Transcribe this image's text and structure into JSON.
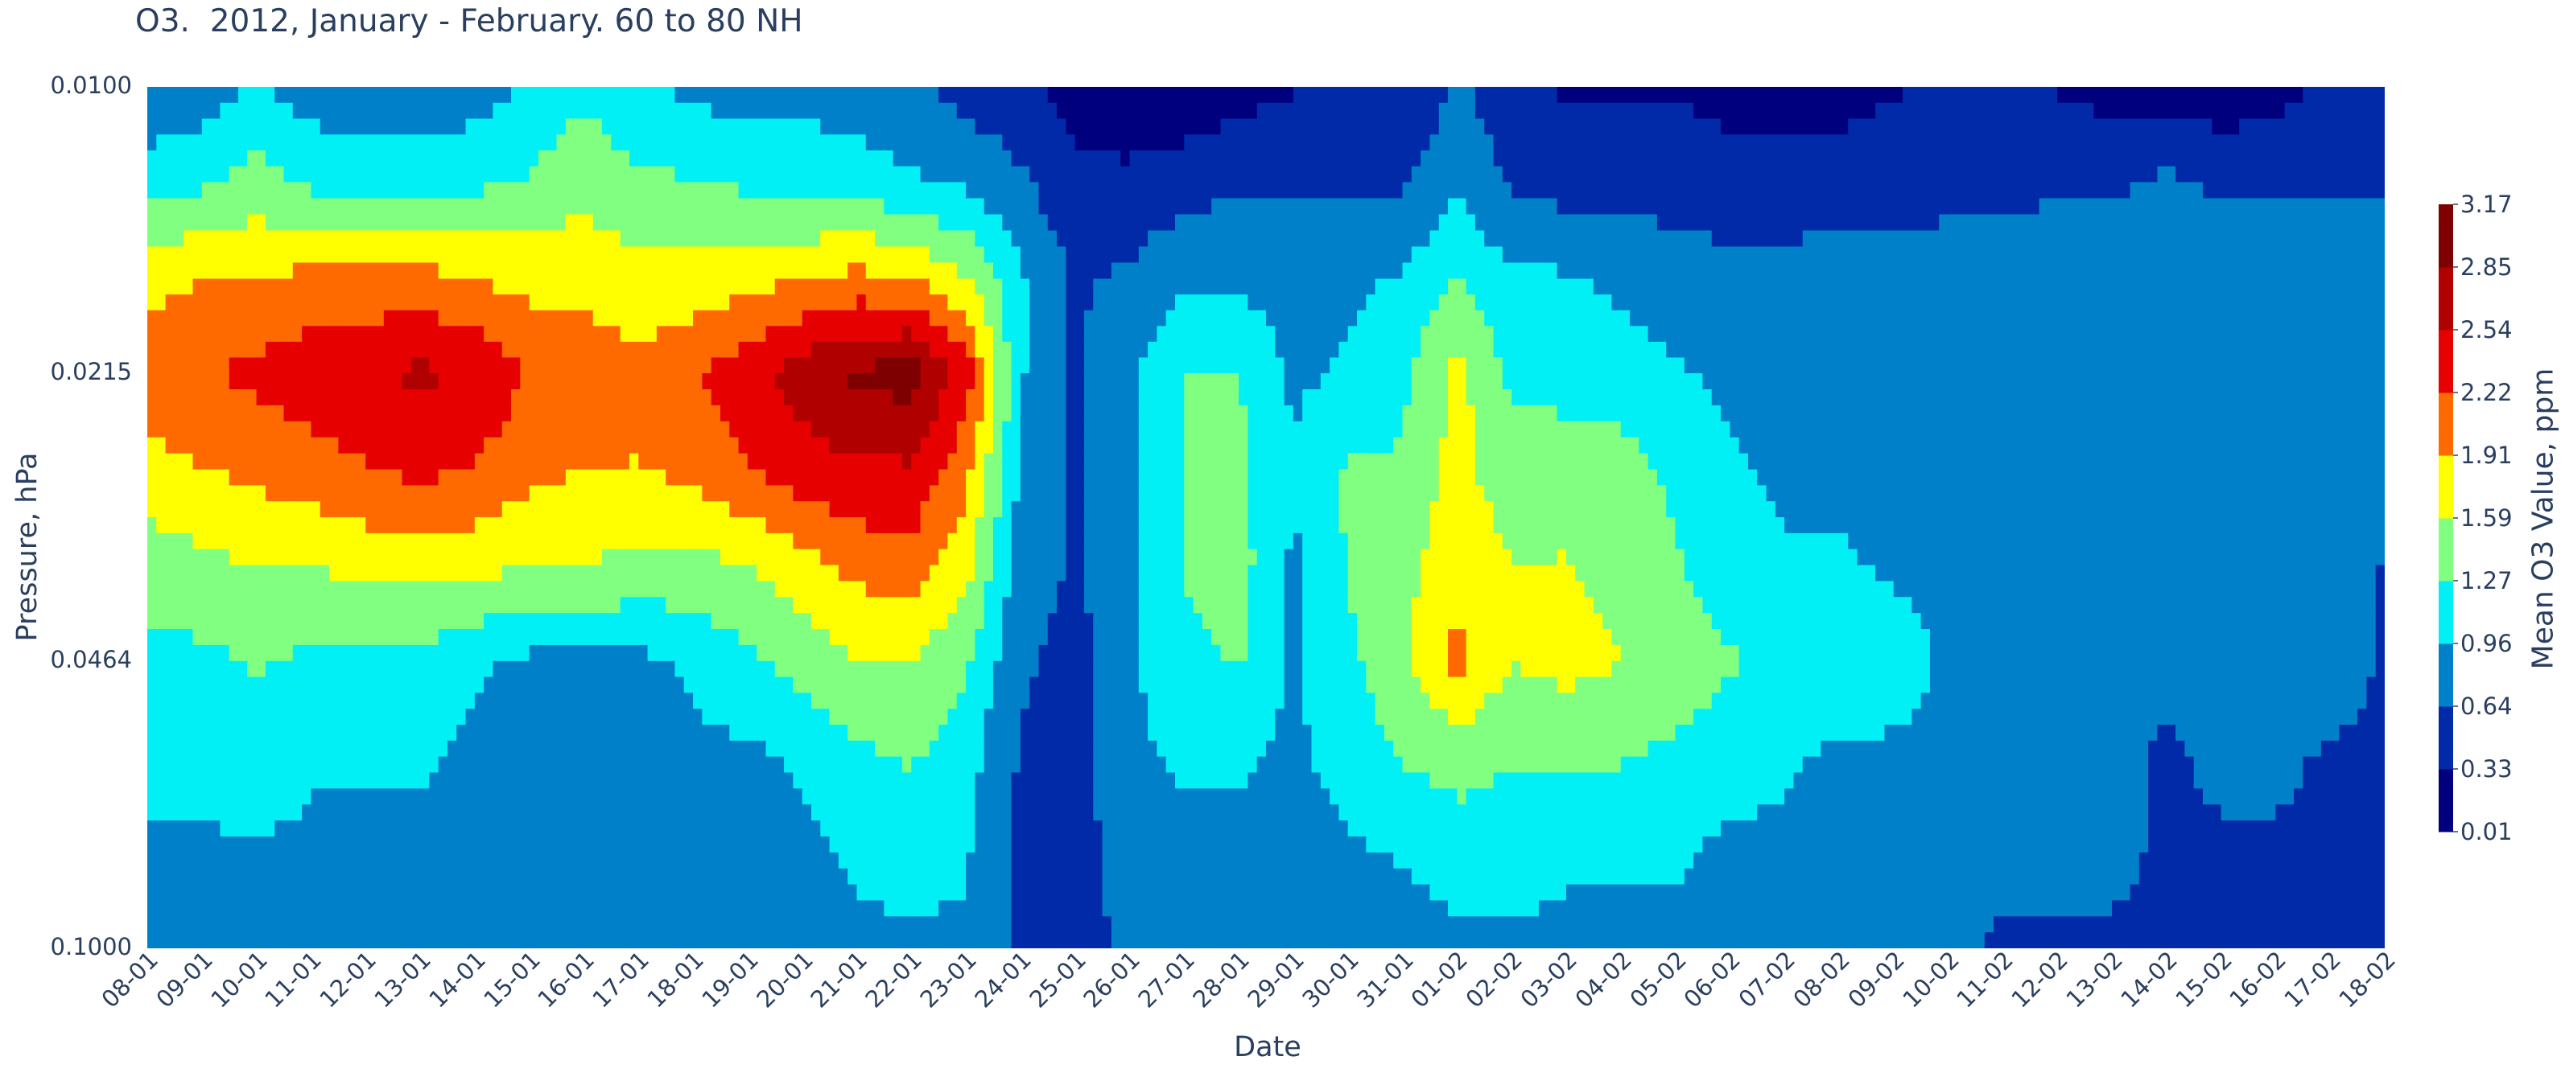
{
  "chart_data": {
    "type": "contour",
    "title": "O3.  2012, January - February. 60 to 80 NH",
    "xlabel": "Date",
    "ylabel": "Pressure, hPa",
    "yscale": "log",
    "yaxis_reversed": true,
    "x": [
      "08-01",
      "09-01",
      "10-01",
      "11-01",
      "12-01",
      "13-01",
      "14-01",
      "15-01",
      "16-01",
      "17-01",
      "18-01",
      "19-01",
      "20-01",
      "21-01",
      "22-01",
      "23-01",
      "24-01",
      "25-01",
      "26-01",
      "27-01",
      "28-01",
      "29-01",
      "30-01",
      "31-01",
      "01-02",
      "02-02",
      "03-02",
      "04-02",
      "05-02",
      "06-02",
      "07-02",
      "08-02",
      "09-02",
      "10-02",
      "11-02",
      "12-02",
      "13-02",
      "14-02",
      "15-02",
      "16-02",
      "17-02",
      "18-02"
    ],
    "y_ticks": [
      "0.0100",
      "0.0215",
      "0.0464",
      "0.1000"
    ],
    "y_values": [
      0.01,
      0.0129,
      0.0167,
      0.0215,
      0.0278,
      0.0359,
      0.0464,
      0.0599,
      0.0774,
      0.1
    ],
    "colorbar": {
      "title": "Mean O3 Value, ppm",
      "levels": [
        0.01,
        0.33,
        0.64,
        0.96,
        1.27,
        1.59,
        1.91,
        2.22,
        2.54,
        2.85,
        3.17
      ],
      "tick_labels": [
        "0.01",
        "0.33",
        "0.64",
        "0.96",
        "1.27",
        "1.59",
        "1.91",
        "2.22",
        "2.54",
        "2.85",
        "3.17"
      ],
      "colors": [
        "#00007f",
        "#002aa8",
        "#0080c8",
        "#00f0f5",
        "#80ff80",
        "#ffff00",
        "#ff6a00",
        "#e60000",
        "#b00000",
        "#7f0000"
      ]
    },
    "z": [
      [
        0.6,
        0.8,
        1.0,
        0.8,
        0.7,
        0.7,
        0.8,
        1.0,
        1.2,
        1.0,
        0.9,
        0.8,
        0.9,
        0.8,
        0.7,
        0.5,
        0.4,
        0.2,
        0.1,
        0.1,
        0.2,
        0.3,
        0.4,
        0.3,
        0.7,
        0.4,
        0.3,
        0.3,
        0.3,
        0.2,
        0.2,
        0.2,
        0.3,
        0.4,
        0.4,
        0.3,
        0.2,
        0.2,
        0.1,
        0.2,
        0.4,
        0.5
      ],
      [
        1.2,
        1.2,
        1.4,
        1.2,
        1.2,
        1.2,
        1.2,
        1.3,
        1.5,
        1.3,
        1.3,
        1.2,
        1.1,
        1.1,
        1.0,
        0.9,
        0.7,
        0.4,
        0.4,
        0.5,
        0.6,
        0.6,
        0.6,
        0.6,
        0.9,
        0.6,
        0.5,
        0.5,
        0.5,
        0.5,
        0.5,
        0.5,
        0.5,
        0.6,
        0.6,
        0.6,
        0.6,
        0.7,
        0.6,
        0.6,
        0.6,
        0.6
      ],
      [
        1.8,
        1.9,
        1.9,
        2.0,
        2.0,
        2.0,
        1.9,
        1.8,
        1.8,
        1.7,
        1.7,
        1.8,
        1.9,
        2.0,
        1.9,
        1.6,
        1.0,
        0.6,
        0.7,
        0.9,
        0.9,
        0.8,
        0.9,
        1.0,
        1.3,
        1.0,
        1.0,
        0.9,
        0.8,
        0.7,
        0.7,
        0.8,
        0.8,
        0.7,
        0.7,
        0.8,
        0.8,
        0.7,
        0.8,
        0.8,
        0.8,
        0.8
      ],
      [
        2.1,
        2.2,
        2.3,
        2.4,
        2.5,
        2.6,
        2.5,
        2.2,
        2.1,
        2.0,
        2.2,
        2.4,
        2.7,
        2.9,
        3.0,
        2.4,
        1.0,
        0.6,
        0.9,
        1.3,
        1.3,
        0.9,
        1.0,
        1.2,
        1.7,
        1.2,
        1.1,
        1.1,
        1.0,
        0.9,
        0.9,
        0.9,
        0.9,
        0.9,
        0.8,
        0.9,
        0.9,
        0.9,
        0.9,
        0.9,
        0.9,
        0.9
      ],
      [
        1.8,
        1.9,
        2.0,
        2.1,
        2.2,
        2.3,
        2.2,
        2.0,
        1.9,
        1.9,
        2.0,
        2.2,
        2.4,
        2.5,
        2.5,
        2.0,
        0.9,
        0.6,
        0.9,
        1.3,
        1.3,
        1.0,
        1.3,
        1.3,
        1.7,
        1.4,
        1.5,
        1.4,
        1.2,
        1.0,
        0.9,
        0.9,
        0.9,
        0.9,
        0.9,
        0.9,
        0.9,
        0.6,
        0.9,
        0.9,
        0.9,
        0.9
      ],
      [
        1.4,
        1.5,
        1.6,
        1.6,
        1.7,
        1.7,
        1.7,
        1.6,
        1.6,
        1.5,
        1.5,
        1.6,
        1.8,
        2.0,
        2.1,
        1.7,
        0.8,
        0.6,
        0.9,
        1.3,
        1.4,
        0.9,
        1.3,
        1.5,
        1.8,
        1.6,
        1.6,
        1.5,
        1.3,
        1.1,
        1.0,
        1.0,
        0.9,
        0.9,
        0.9,
        0.9,
        0.9,
        0.8,
        0.9,
        0.9,
        0.9,
        0.6
      ],
      [
        1.2,
        1.2,
        1.3,
        1.2,
        1.2,
        1.2,
        1.0,
        0.9,
        0.9,
        0.9,
        1.0,
        1.2,
        1.4,
        1.6,
        1.6,
        1.3,
        0.7,
        0.5,
        0.9,
        1.2,
        1.3,
        0.9,
        1.2,
        1.5,
        2.0,
        1.6,
        1.7,
        1.6,
        1.5,
        1.3,
        1.2,
        1.3,
        1.1,
        0.9,
        0.9,
        0.9,
        0.9,
        0.7,
        0.9,
        0.9,
        0.8,
        0.6
      ],
      [
        1.1,
        1.1,
        1.2,
        1.0,
        1.0,
        1.0,
        0.9,
        0.9,
        0.9,
        0.9,
        0.9,
        0.9,
        1.0,
        1.2,
        1.3,
        1.1,
        0.6,
        0.5,
        0.9,
        1.0,
        1.0,
        0.9,
        1.1,
        1.3,
        1.4,
        1.3,
        1.3,
        1.3,
        1.2,
        1.1,
        1.0,
        0.9,
        0.9,
        0.9,
        0.8,
        0.8,
        0.7,
        0.6,
        0.7,
        0.7,
        0.6,
        0.6
      ],
      [
        0.9,
        0.9,
        0.9,
        0.9,
        0.9,
        0.9,
        0.9,
        0.9,
        0.9,
        0.9,
        0.9,
        0.9,
        0.9,
        1.0,
        1.1,
        1.0,
        0.6,
        0.5,
        0.8,
        0.9,
        0.9,
        0.8,
        0.9,
        1.0,
        1.1,
        1.1,
        1.0,
        1.0,
        1.0,
        0.9,
        0.9,
        0.9,
        0.9,
        0.8,
        0.7,
        0.7,
        0.7,
        0.6,
        0.6,
        0.6,
        0.6,
        0.6
      ],
      [
        0.9,
        0.9,
        0.9,
        0.9,
        0.9,
        0.9,
        0.9,
        0.9,
        0.9,
        0.9,
        0.9,
        0.9,
        0.9,
        0.9,
        0.9,
        0.9,
        0.6,
        0.5,
        0.7,
        0.8,
        0.8,
        0.7,
        0.7,
        0.8,
        0.9,
        0.9,
        0.9,
        0.9,
        0.9,
        0.9,
        0.9,
        0.9,
        0.8,
        0.7,
        0.6,
        0.6,
        0.6,
        0.6,
        0.6,
        0.6,
        0.6,
        0.6
      ]
    ]
  }
}
